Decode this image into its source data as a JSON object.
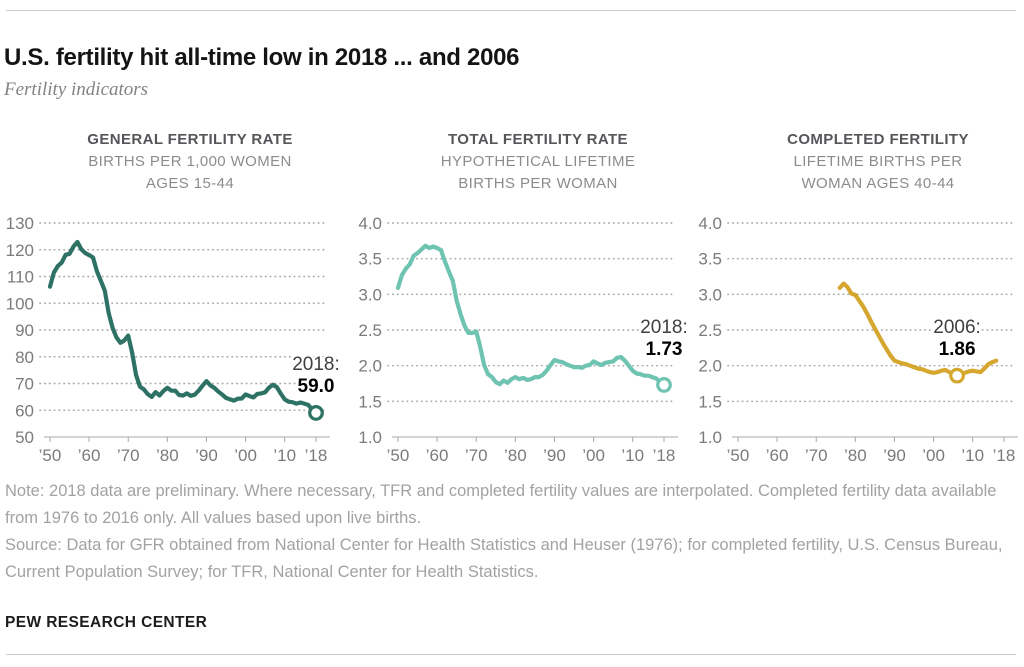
{
  "header": {
    "title": "U.S. fertility hit all-time low in 2018 ... and 2006",
    "subtitle": "Fertility indicators"
  },
  "chart_data": [
    {
      "type": "line",
      "title": "GENERAL FERTILITY RATE",
      "subtitle1": "BIRTHS PER 1,000 WOMEN",
      "subtitle2": "AGES 15-44",
      "color": "#2e7265",
      "ylim": [
        50,
        130
      ],
      "yticks": [
        50,
        60,
        70,
        80,
        90,
        100,
        110,
        120,
        130
      ],
      "ytick_labels": [
        "50",
        "60",
        "70",
        "80",
        "90",
        "100",
        "110",
        "120",
        "130"
      ],
      "xticks": [
        1950,
        1960,
        1970,
        1980,
        1990,
        2000,
        2010,
        2018
      ],
      "xtick_labels": [
        "’50",
        "’60",
        "’70",
        "’80",
        "’90",
        "’00",
        "’10",
        "’18"
      ],
      "start_year": 1950,
      "end_year": 2018,
      "values": [
        106.2,
        111.5,
        113.9,
        115.2,
        118.1,
        118.5,
        121.2,
        122.9,
        120.2,
        118.8,
        118.0,
        117.1,
        112.0,
        108.3,
        104.7,
        96.3,
        90.8,
        87.2,
        85.2,
        86.1,
        87.9,
        81.6,
        73.1,
        68.8,
        67.8,
        66.0,
        65.0,
        66.8,
        65.5,
        67.2,
        68.4,
        67.3,
        67.3,
        65.7,
        65.5,
        66.3,
        65.4,
        65.8,
        67.3,
        69.2,
        70.9,
        69.3,
        68.4,
        67.0,
        65.9,
        64.6,
        64.1,
        63.6,
        64.3,
        64.4,
        65.9,
        65.3,
        64.8,
        66.1,
        66.3,
        66.7,
        68.5,
        69.5,
        68.6,
        66.2,
        64.1,
        63.2,
        63.0,
        62.5,
        62.9,
        62.5,
        62.0,
        60.3,
        59.0
      ],
      "annotation": {
        "year": 2018,
        "value": 59.0,
        "label": "2018:",
        "value_label": "59.0"
      }
    },
    {
      "type": "line",
      "title": "TOTAL FERTILITY RATE",
      "subtitle1": "HYPOTHETICAL LIFETIME",
      "subtitle2": "BIRTHS PER WOMAN",
      "color": "#6fc3b1",
      "ylim": [
        1.0,
        4.0
      ],
      "yticks": [
        1.0,
        1.5,
        2.0,
        2.5,
        3.0,
        3.5,
        4.0
      ],
      "ytick_labels": [
        "1.0",
        "1.5",
        "2.0",
        "2.5",
        "3.0",
        "3.5",
        "4.0"
      ],
      "xticks": [
        1950,
        1960,
        1970,
        1980,
        1990,
        2000,
        2010,
        2018
      ],
      "xtick_labels": [
        "’50",
        "’60",
        "’70",
        "’80",
        "’90",
        "’00",
        "’10",
        "’18"
      ],
      "start_year": 1950,
      "end_year": 2018,
      "values": [
        3.09,
        3.27,
        3.36,
        3.42,
        3.54,
        3.58,
        3.63,
        3.68,
        3.65,
        3.67,
        3.65,
        3.62,
        3.46,
        3.32,
        3.19,
        2.91,
        2.72,
        2.56,
        2.46,
        2.46,
        2.48,
        2.27,
        2.01,
        1.88,
        1.84,
        1.77,
        1.74,
        1.79,
        1.76,
        1.81,
        1.84,
        1.81,
        1.83,
        1.8,
        1.81,
        1.84,
        1.84,
        1.87,
        1.93,
        2.01,
        2.08,
        2.06,
        2.05,
        2.02,
        2.0,
        1.98,
        1.98,
        1.97,
        2.0,
        2.01,
        2.06,
        2.03,
        2.01,
        2.04,
        2.05,
        2.06,
        2.11,
        2.12,
        2.07,
        2.0,
        1.93,
        1.89,
        1.88,
        1.86,
        1.86,
        1.84,
        1.82,
        1.77,
        1.73
      ],
      "annotation": {
        "year": 2018,
        "value": 1.73,
        "label": "2018:",
        "value_label": "1.73"
      }
    },
    {
      "type": "line",
      "title": "COMPLETED FERTILITY",
      "subtitle1": "LIFETIME BIRTHS PER",
      "subtitle2": "WOMAN AGES 40-44",
      "color": "#d5a72f",
      "ylim": [
        1.0,
        4.0
      ],
      "yticks": [
        1.0,
        1.5,
        2.0,
        2.5,
        3.0,
        3.5,
        4.0
      ],
      "ytick_labels": [
        "1.0",
        "1.5",
        "2.0",
        "2.5",
        "3.0",
        "3.5",
        "4.0"
      ],
      "xticks": [
        1950,
        1960,
        1970,
        1980,
        1990,
        2000,
        2010,
        2018
      ],
      "xtick_labels": [
        "’50",
        "’60",
        "’70",
        "’80",
        "’90",
        "’00",
        "’10",
        "’18"
      ],
      "start_year": 1976,
      "end_year": 2016,
      "values": [
        3.09,
        3.15,
        3.1,
        3.01,
        2.99,
        2.91,
        2.83,
        2.73,
        2.62,
        2.52,
        2.42,
        2.32,
        2.23,
        2.14,
        2.07,
        2.05,
        2.03,
        2.02,
        2.0,
        1.98,
        1.96,
        1.95,
        1.93,
        1.91,
        1.9,
        1.91,
        1.93,
        1.94,
        1.91,
        1.88,
        1.86,
        1.88,
        1.9,
        1.92,
        1.93,
        1.92,
        1.91,
        1.96,
        2.02,
        2.05,
        2.07
      ],
      "annotation": {
        "year": 2006,
        "value": 1.86,
        "label": "2006:",
        "value_label": "1.86"
      }
    }
  ],
  "footer": {
    "note": "Note: 2018 data are preliminary. Where necessary, TFR and completed fertility values are interpolated. Completed fertility data available from 1976 to 2016 only. All values based upon live births.",
    "source": "Source: Data for GFR obtained from National Center for Health Statistics and Heuser (1976); for completed fertility, U.S. Census Bureau, Current Population Survey; for TFR, National Center for Health Statistics.",
    "brand": "PEW RESEARCH CENTER"
  }
}
